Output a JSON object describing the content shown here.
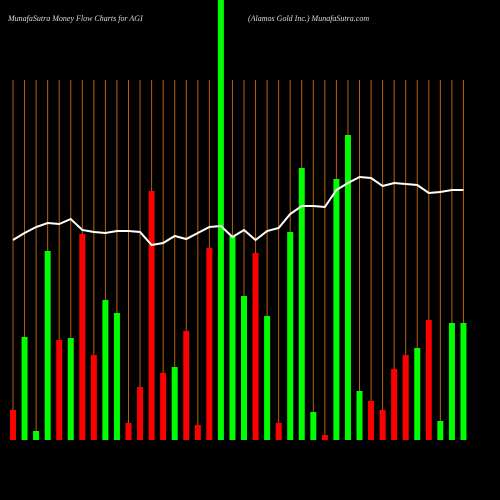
{
  "chart_data": {
    "type": "bar",
    "title": "MunafaSutra  Money Flow  Charts for AGI",
    "subtitle": "(Alamos Gold Inc.) MunafaSutra.com",
    "categories": [
      null,
      null,
      null,
      null,
      null,
      null,
      null,
      null,
      null,
      null,
      null,
      null,
      null,
      null,
      null,
      null,
      null,
      null,
      null,
      null,
      null,
      null,
      null,
      null,
      null,
      null,
      null,
      null,
      null,
      null,
      null,
      null,
      null,
      null,
      null,
      null,
      null,
      null,
      null,
      null
    ],
    "ylim": [
      0,
      440
    ],
    "grid": true,
    "grid_color": "#b8600e",
    "series": [
      {
        "type": "bar",
        "values": [
          30,
          103,
          9,
          189,
          100,
          102,
          206,
          85,
          140,
          127,
          17,
          53,
          249,
          67,
          73,
          109,
          15,
          192,
          440,
          204,
          144,
          187,
          124,
          17,
          208,
          272,
          28,
          5,
          261,
          305,
          49,
          39,
          30,
          71,
          85,
          92,
          120,
          19,
          117,
          117
        ],
        "colors": [
          "#ff0000",
          "#00ff00",
          "#00ff00",
          "#00ff00",
          "#ff0000",
          "#00ff00",
          "#ff0000",
          "#ff0000",
          "#00ff00",
          "#00ff00",
          "#ff0000",
          "#ff0000",
          "#ff0000",
          "#ff0000",
          "#00ff00",
          "#ff0000",
          "#ff0000",
          "#ff0000",
          "#00ff00",
          "#00ff00",
          "#00ff00",
          "#ff0000",
          "#00ff00",
          "#ff0000",
          "#00ff00",
          "#00ff00",
          "#00ff00",
          "#ff0000",
          "#00ff00",
          "#00ff00",
          "#00ff00",
          "#ff0000",
          "#ff0000",
          "#ff0000",
          "#ff0000",
          "#00ff00",
          "#ff0000",
          "#00ff00",
          "#00ff00",
          "#00ff00"
        ]
      },
      {
        "type": "line",
        "color": "#ffffff",
        "values": [
          200,
          207,
          213,
          217,
          216,
          221,
          210,
          208,
          207,
          209,
          209,
          208,
          195,
          197,
          204,
          201,
          207,
          213,
          214,
          203,
          210,
          200,
          209,
          212,
          226,
          234,
          234,
          233,
          250,
          257,
          263,
          262,
          254,
          257,
          256,
          255,
          247,
          248,
          250,
          250
        ]
      }
    ]
  }
}
